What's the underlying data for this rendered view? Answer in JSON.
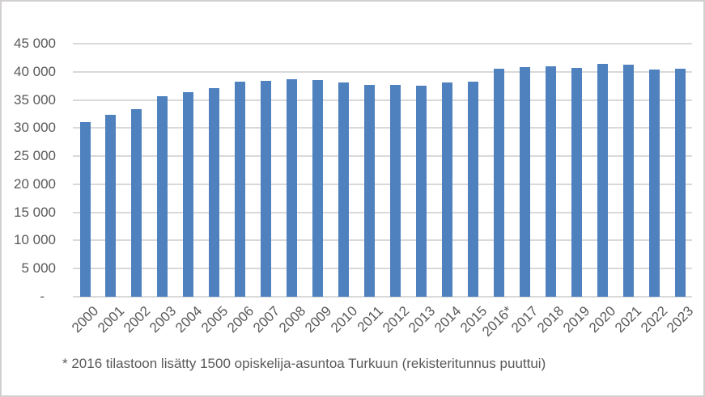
{
  "chart_data": {
    "type": "bar",
    "categories": [
      "2000",
      "2001",
      "2002",
      "2003",
      "2004",
      "2005",
      "2006",
      "2007",
      "2008",
      "2009",
      "2010",
      "2011",
      "2012",
      "2013",
      "2014",
      "2015",
      "2016*",
      "2017",
      "2018",
      "2019",
      "2020",
      "2021",
      "2022",
      "2023"
    ],
    "values": [
      31100,
      32300,
      33400,
      35600,
      36400,
      37100,
      38200,
      38400,
      38700,
      38600,
      38100,
      37600,
      37700,
      37500,
      38100,
      38300,
      40500,
      40800,
      41000,
      40700,
      41400,
      41300,
      40400,
      40600
    ],
    "title": "",
    "xlabel": "",
    "ylabel": "",
    "ylim": [
      0,
      45000
    ],
    "ytick_step": 5000,
    "ytick_labels": [
      "-",
      "5 000",
      "10 000",
      "15 000",
      "20 000",
      "25 000",
      "30 000",
      "35 000",
      "40 000",
      "45 000"
    ],
    "grid": true,
    "legend": false,
    "bar_color": "#4e81bd",
    "gridline_color": "#d9d9d9",
    "text_color": "#595959",
    "frame_border_color": "#d2cfcf"
  },
  "footnote": "* 2016 tilastoon lisätty 1500 opiskelija-asuntoa Turkuun (rekisteritunnus puuttui)"
}
